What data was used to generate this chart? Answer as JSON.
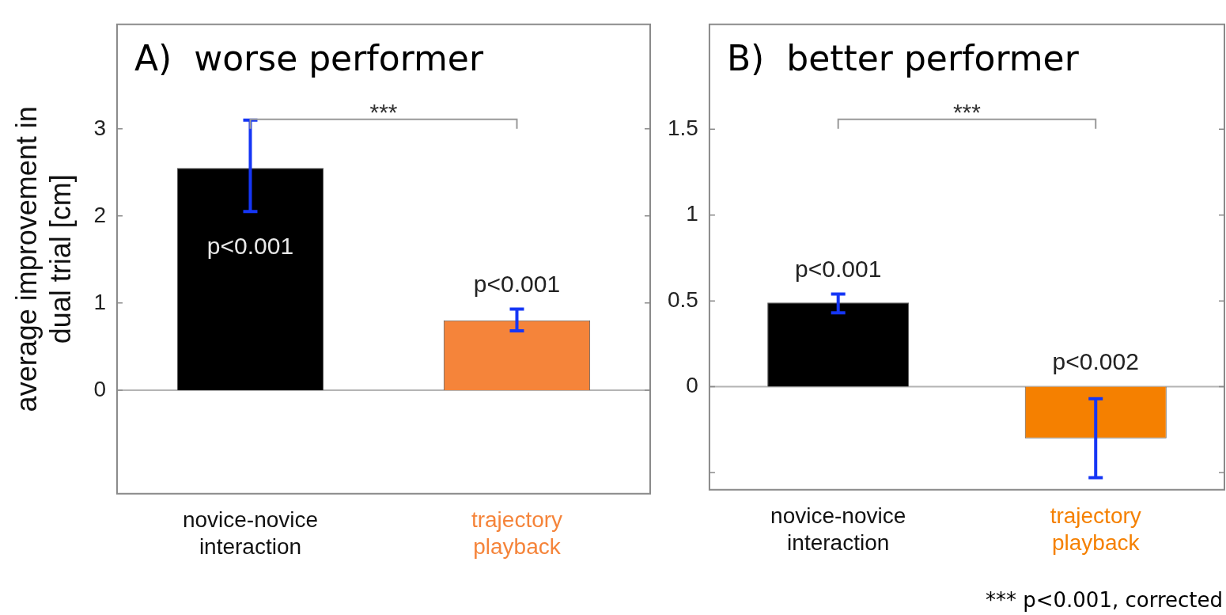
{
  "chart_data": [
    {
      "type": "bar",
      "title": "A)  worse performer",
      "ylabel": "average improvement in\ndual trial [cm]",
      "categories": [
        "novice-novice\ninteraction",
        "trajectory\nplayback"
      ],
      "values": [
        2.55,
        0.8
      ],
      "colors": [
        "#000000",
        "#f5843a"
      ],
      "errors": [
        [
          2.05,
          3.1
        ],
        [
          0.68,
          0.93
        ]
      ],
      "ylim": [
        -1.19,
        4.2
      ],
      "yticks": [
        0,
        1,
        2,
        3
      ],
      "grid": false,
      "ref_lines": [
        {
          "axis": "y",
          "value": 0,
          "color": "#b4b4b4"
        }
      ],
      "annotations": [
        "p<0.001",
        "p<0.001",
        "***"
      ]
    },
    {
      "type": "bar",
      "title": "B)  better performer",
      "categories": [
        "novice-novice\ninteraction",
        "trajectory\nplayback"
      ],
      "values": [
        0.49,
        -0.3
      ],
      "colors": [
        "#000000",
        "#f58000"
      ],
      "errors": [
        [
          0.43,
          0.54
        ],
        [
          -0.53,
          -0.07
        ]
      ],
      "ylim": [
        -0.6,
        2.11
      ],
      "yticks": [
        {
          "value": -0.5,
          "label": null
        },
        0,
        0.5,
        1,
        1.5
      ],
      "grid": false,
      "ref_lines": [
        {
          "axis": "y",
          "value": 0,
          "color": "#b4b4b4"
        }
      ],
      "annotations": [
        "p<0.001",
        "p<0.002",
        "***",
        "*** p<0.001, corrected"
      ]
    }
  ]
}
